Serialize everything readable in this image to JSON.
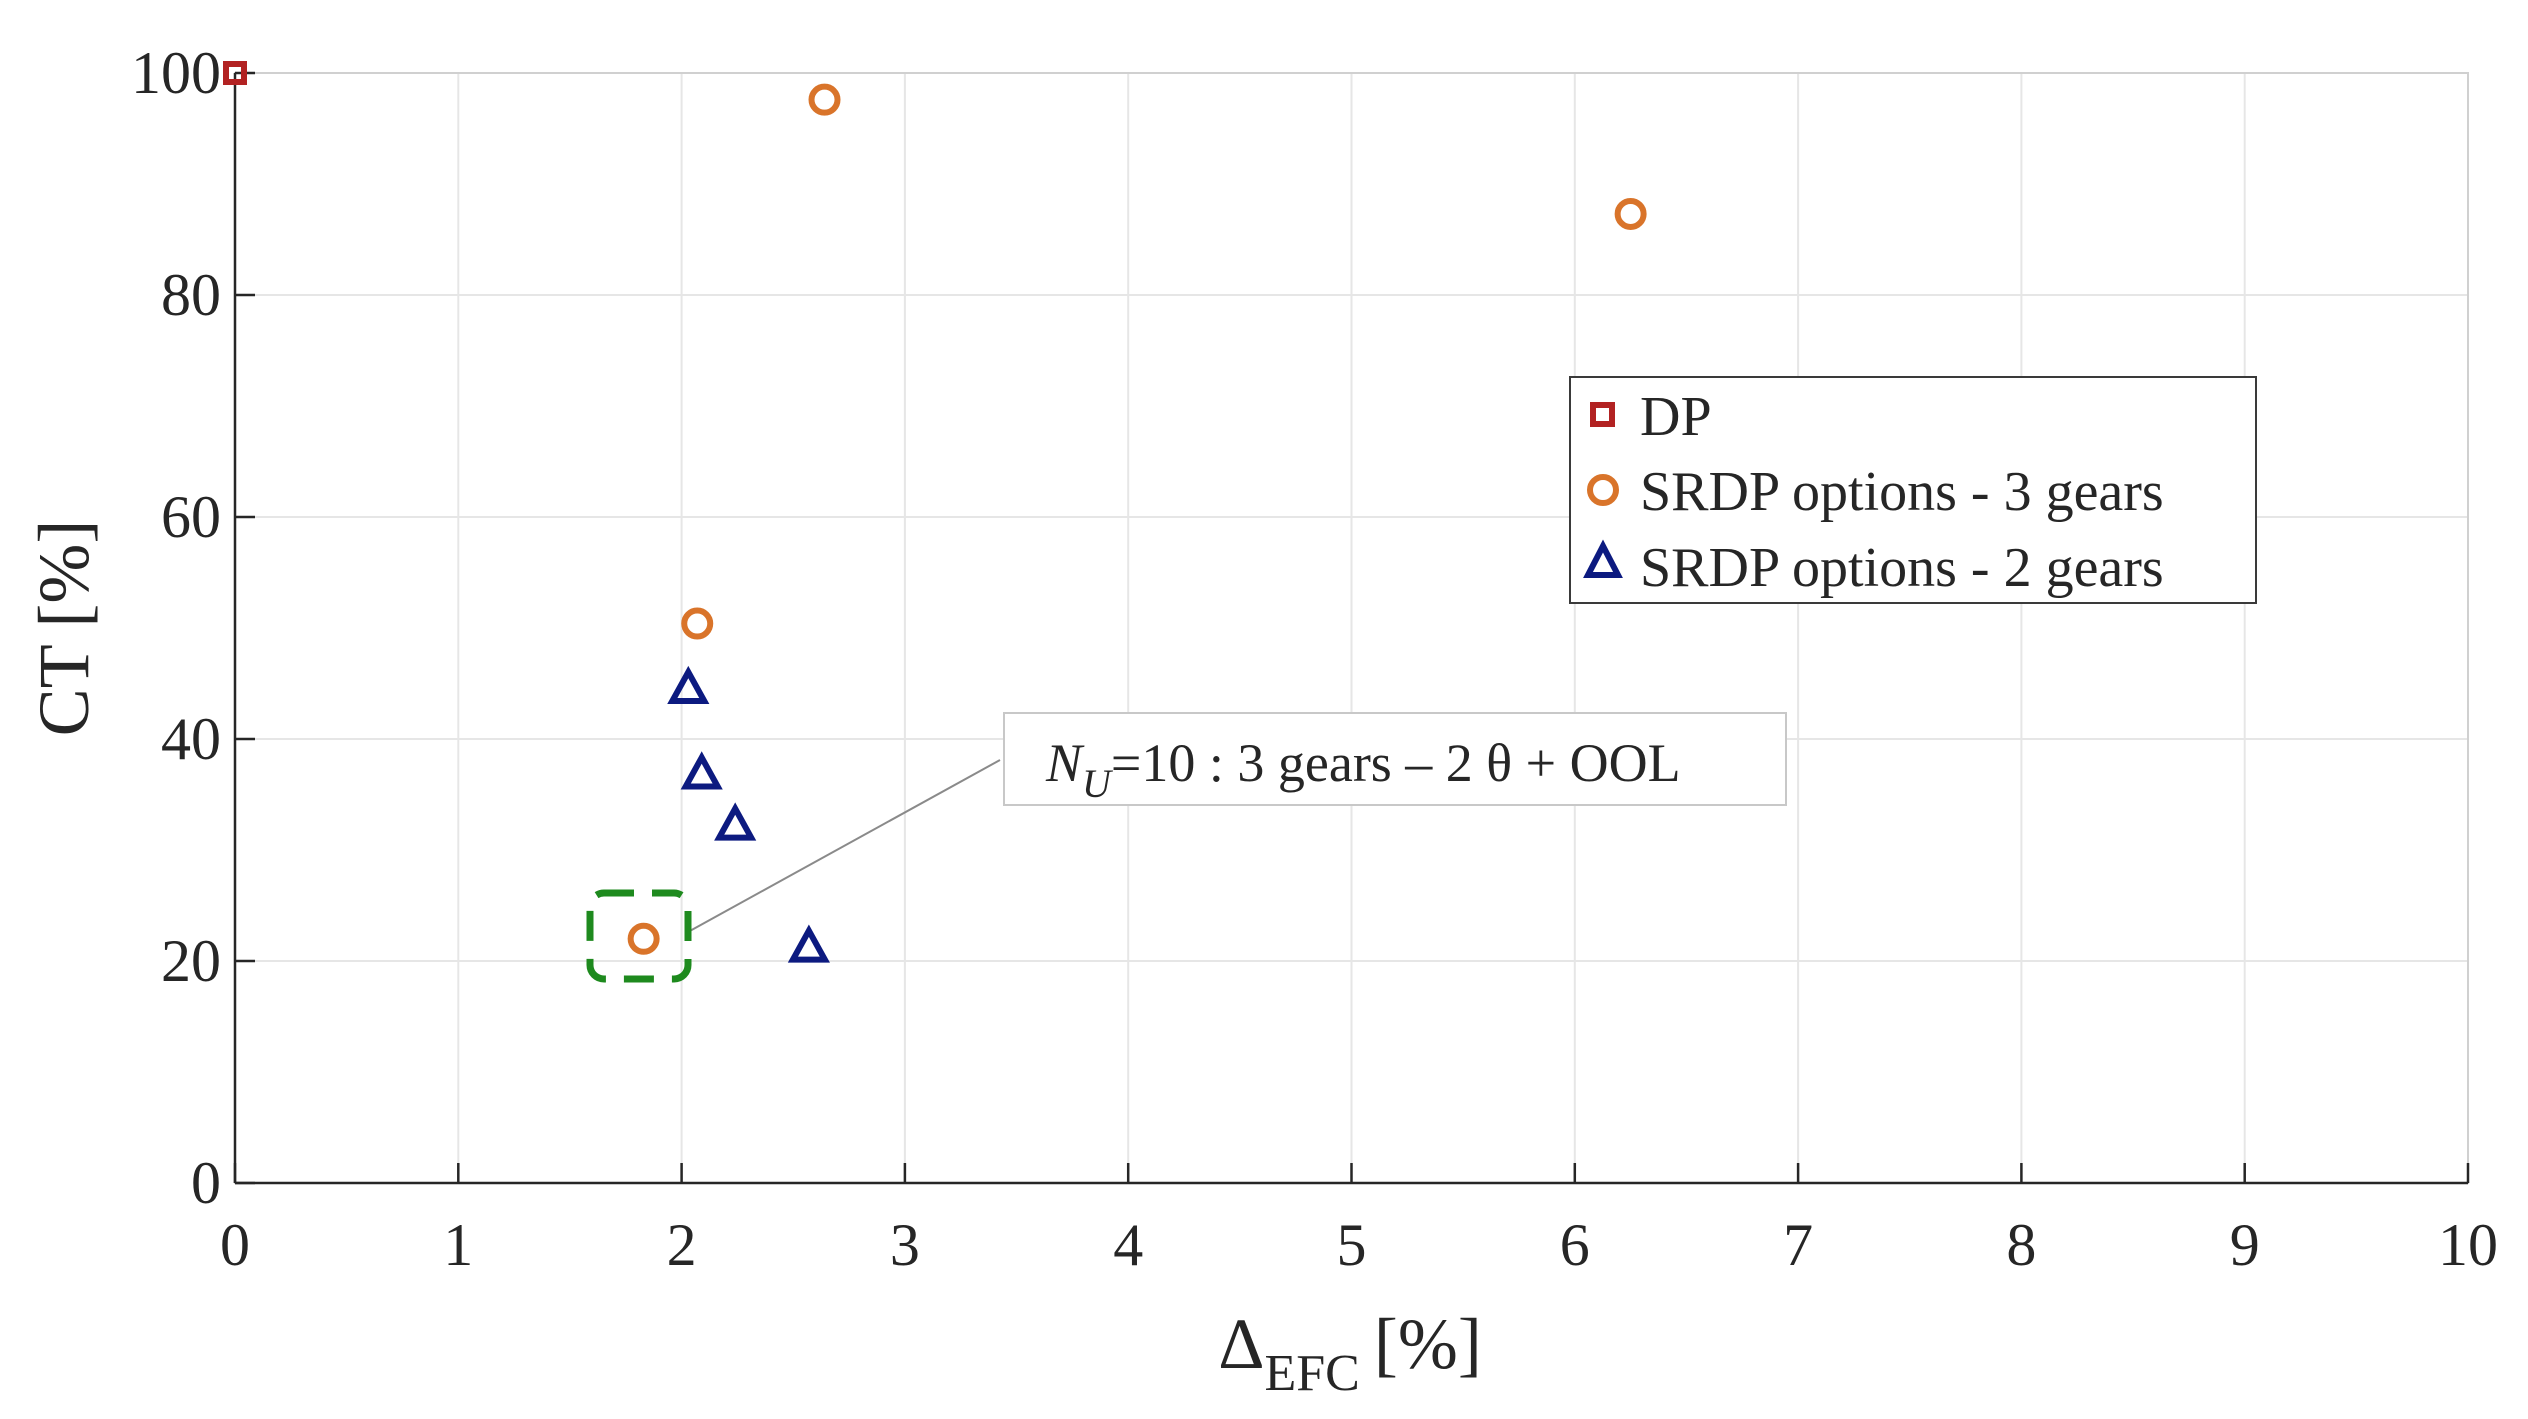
{
  "chart_data": {
    "type": "scatter",
    "title": "",
    "xlabel": "Δ",
    "xlabel_sub": "EFC",
    "xlabel_unit": "[%]",
    "ylabel": "CT [%]",
    "xlim": [
      0,
      10
    ],
    "ylim": [
      0,
      100
    ],
    "xticks": [
      0,
      1,
      2,
      3,
      4,
      5,
      6,
      7,
      8,
      9,
      10
    ],
    "yticks": [
      0,
      20,
      40,
      60,
      80,
      100
    ],
    "grid": true,
    "legend_position": "right",
    "series": [
      {
        "name": "DP",
        "marker": "square",
        "color": "#b22222",
        "points": [
          {
            "x": 0,
            "y": 100
          }
        ]
      },
      {
        "name": "SRDP options - 3 gears",
        "marker": "circle",
        "color": "#d9742a",
        "points": [
          {
            "x": 2.64,
            "y": 97.6
          },
          {
            "x": 6.25,
            "y": 87.3
          },
          {
            "x": 2.07,
            "y": 50.4
          },
          {
            "x": 1.83,
            "y": 22.0
          }
        ]
      },
      {
        "name": "SRDP options - 2 gears",
        "marker": "triangle",
        "color": "#0c1a80",
        "points": [
          {
            "x": 2.03,
            "y": 44.5
          },
          {
            "x": 2.09,
            "y": 36.8
          },
          {
            "x": 2.24,
            "y": 32.2
          },
          {
            "x": 2.57,
            "y": 21.2
          }
        ]
      }
    ],
    "annotation": {
      "main": "N",
      "sub": "U",
      "rest": "=10 : 3 gears – 2 θ + OOL",
      "target": {
        "x": 1.83,
        "y": 22.0
      },
      "highlight_color": "#1e8a1e"
    }
  }
}
